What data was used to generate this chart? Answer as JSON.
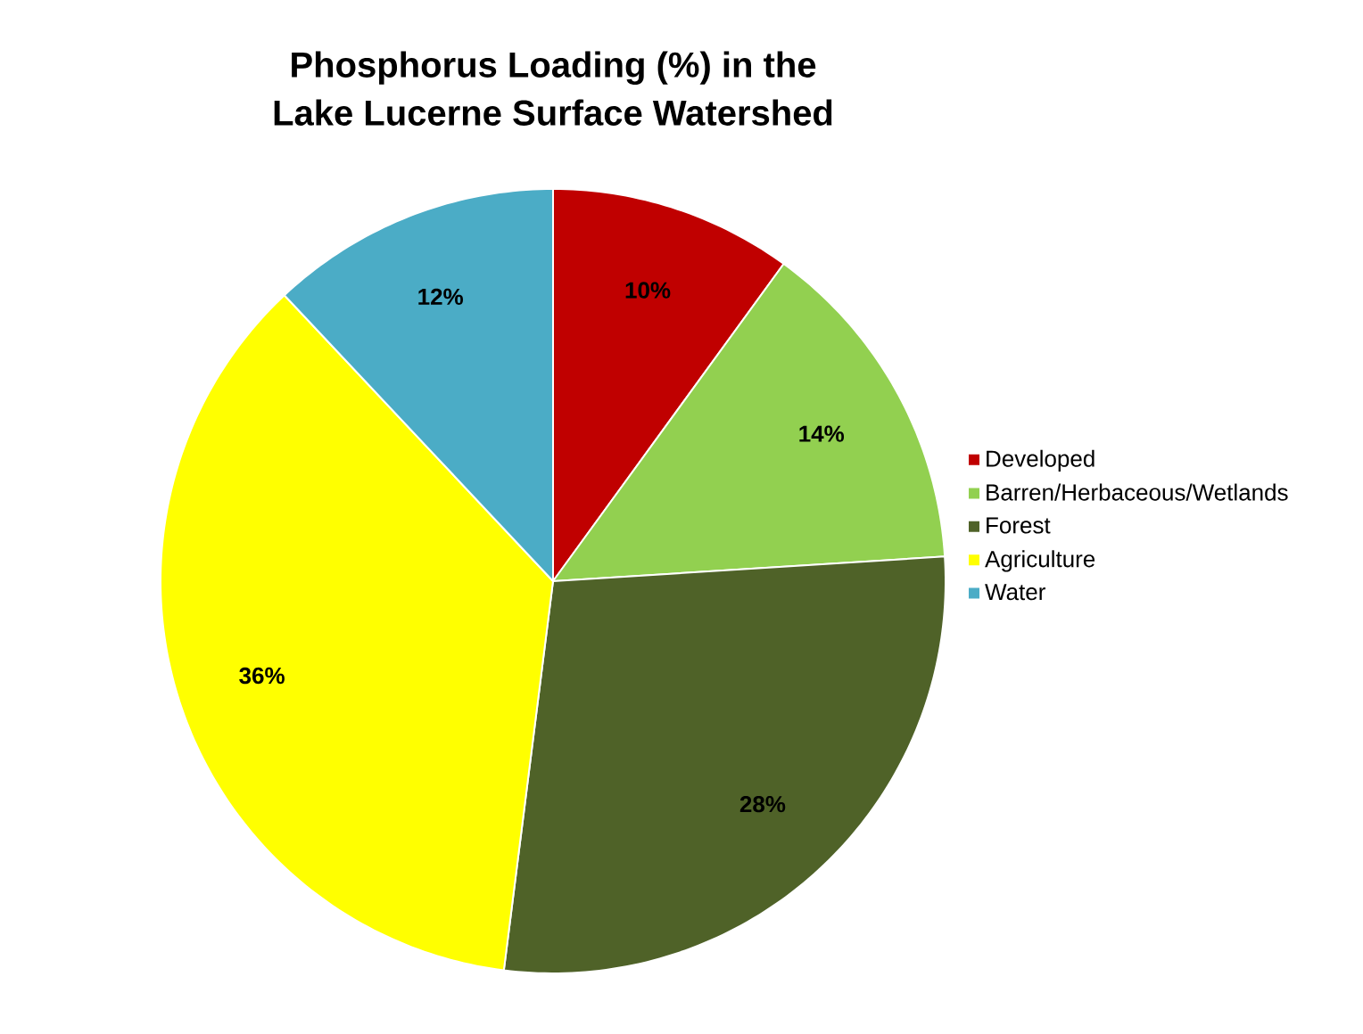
{
  "chart_data": {
    "type": "pie",
    "title": "Phosphorus Loading (%) in the\nLake Lucerne Surface Watershed",
    "categories": [
      "Developed",
      "Barren/Herbaceous/Wetlands",
      "Forest",
      "Agriculture",
      "Water"
    ],
    "values": [
      10,
      14,
      28,
      36,
      12
    ],
    "colors": [
      "#c00000",
      "#92d050",
      "#4f6228",
      "#ffff00",
      "#4bacc6"
    ],
    "value_labels": [
      "10%",
      "14%",
      "28%",
      "36%",
      "12%"
    ],
    "legend": "right"
  }
}
